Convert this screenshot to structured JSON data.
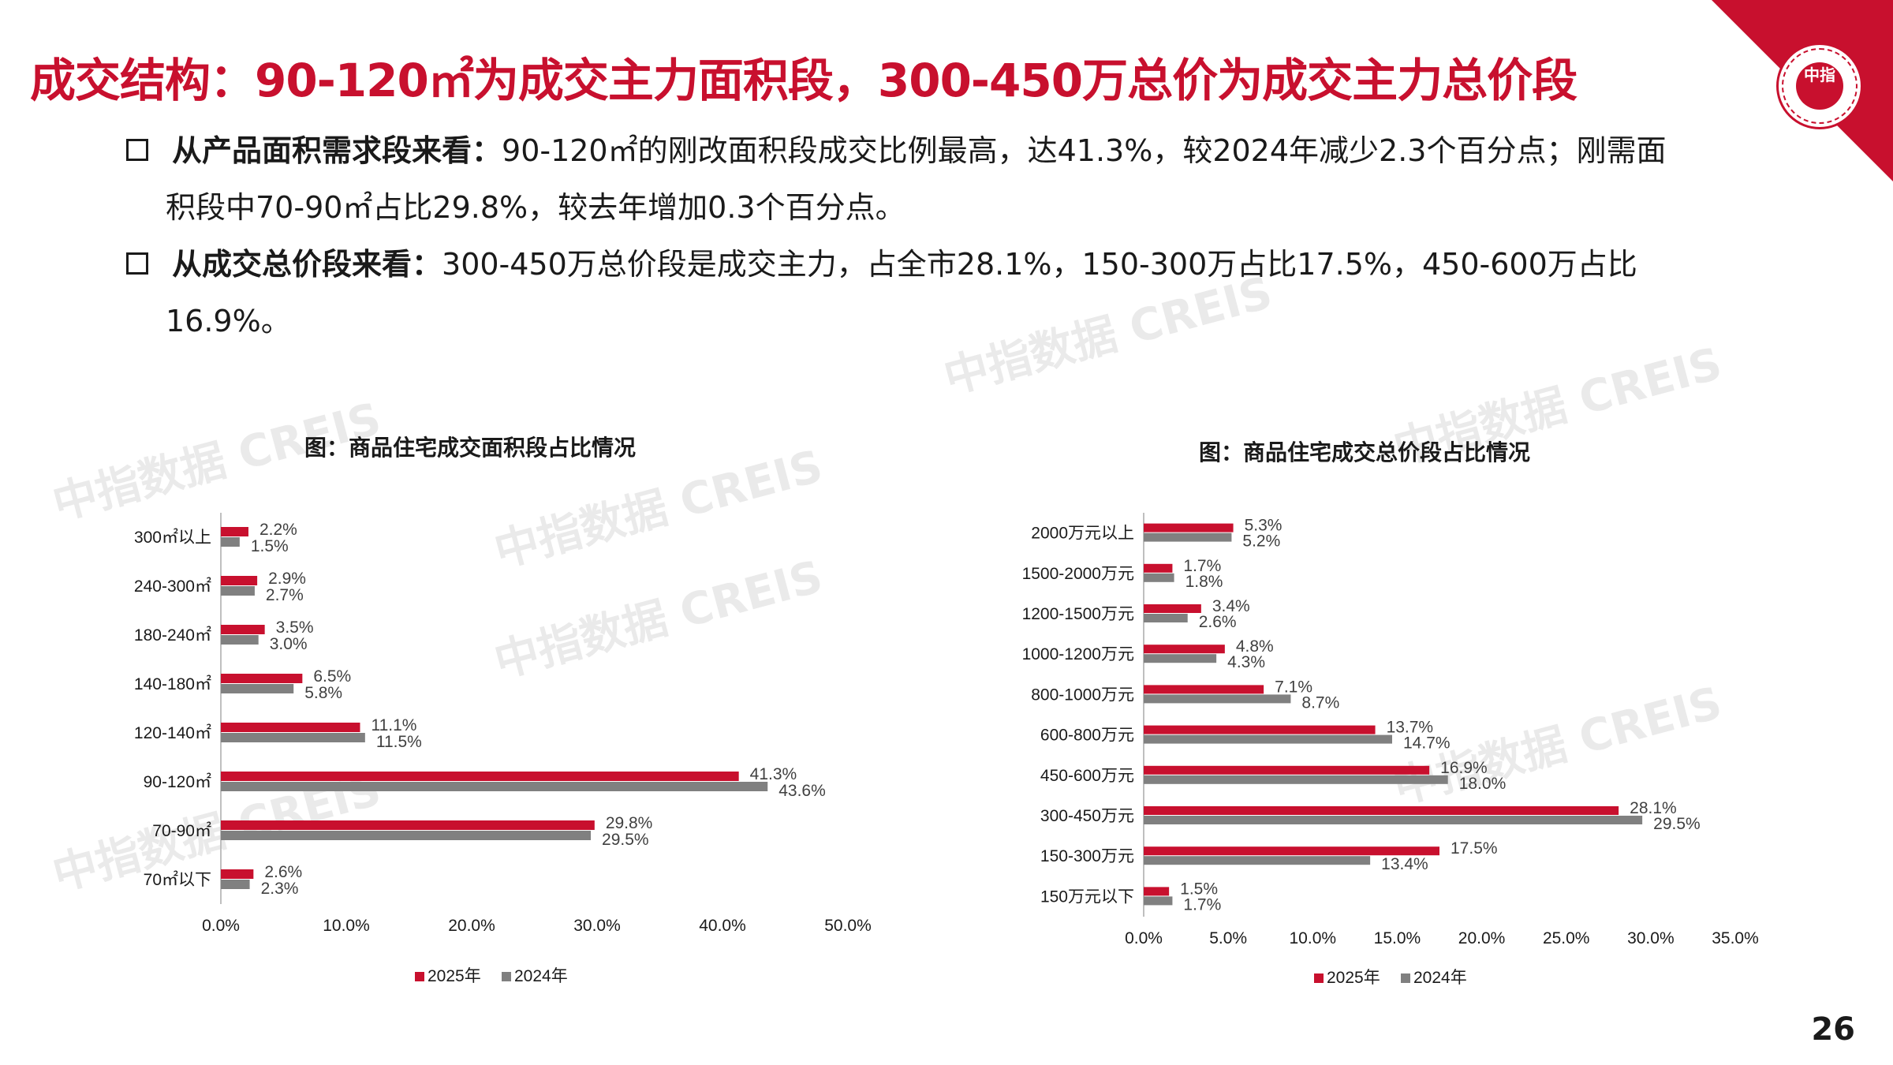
{
  "title": "成交结构：90-120㎡为成交主力面积段，300-450万总价为成交主力总价段",
  "brand": {
    "logo_text": "中指",
    "accent": "#c8102e"
  },
  "bullets": [
    {
      "label": "从产品面积需求段来看：",
      "line1": "90-120㎡的刚改面积段成交比例最高，达41.3%，较2024年减少2.3个百分点；刚需面",
      "line2": "积段中70-90㎡占比29.8%，较去年增加0.3个百分点。"
    },
    {
      "label": "从成交总价段来看：",
      "line1": "300-450万总价段是成交主力，占全市28.1%，150-300万占比17.5%，450-600万占比",
      "line2": "16.9%。"
    }
  ],
  "watermark": "中指数据 CREIS",
  "page_number": "26",
  "chart_data": [
    {
      "type": "bar",
      "orientation": "horizontal",
      "title": "图：商品住宅成交面积段占比情况",
      "categories": [
        "300㎡以上",
        "240-300㎡",
        "180-240㎡",
        "140-180㎡",
        "120-140㎡",
        "90-120㎡",
        "70-90㎡",
        "70㎡以下"
      ],
      "series": [
        {
          "name": "2025年",
          "color": "#c8102e",
          "values": [
            2.2,
            2.9,
            3.5,
            6.5,
            11.1,
            41.3,
            29.8,
            2.6
          ]
        },
        {
          "name": "2024年",
          "color": "#808080",
          "values": [
            1.5,
            2.7,
            3.0,
            5.8,
            11.5,
            43.6,
            29.5,
            2.3
          ]
        }
      ],
      "xlim": [
        0,
        50
      ],
      "ticks": [
        "0.0%",
        "10.0%",
        "20.0%",
        "30.0%",
        "40.0%",
        "50.0%"
      ],
      "legend": "bottom"
    },
    {
      "type": "bar",
      "orientation": "horizontal",
      "title": "图：商品住宅成交总价段占比情况",
      "categories": [
        "2000万元以上",
        "1500-2000万元",
        "1200-1500万元",
        "1000-1200万元",
        "800-1000万元",
        "600-800万元",
        "450-600万元",
        "300-450万元",
        "150-300万元",
        "150万元以下"
      ],
      "series": [
        {
          "name": "2025年",
          "color": "#c8102e",
          "values": [
            5.3,
            1.7,
            3.4,
            4.8,
            7.1,
            13.7,
            16.9,
            28.1,
            17.5,
            1.5
          ]
        },
        {
          "name": "2024年",
          "color": "#808080",
          "values": [
            5.2,
            1.8,
            2.6,
            4.3,
            8.7,
            14.7,
            18.0,
            29.5,
            13.4,
            1.7
          ]
        }
      ],
      "xlim": [
        0,
        35
      ],
      "ticks": [
        "0.0%",
        "5.0%",
        "10.0%",
        "15.0%",
        "20.0%",
        "25.0%",
        "30.0%",
        "35.0%"
      ],
      "legend": "bottom"
    }
  ]
}
